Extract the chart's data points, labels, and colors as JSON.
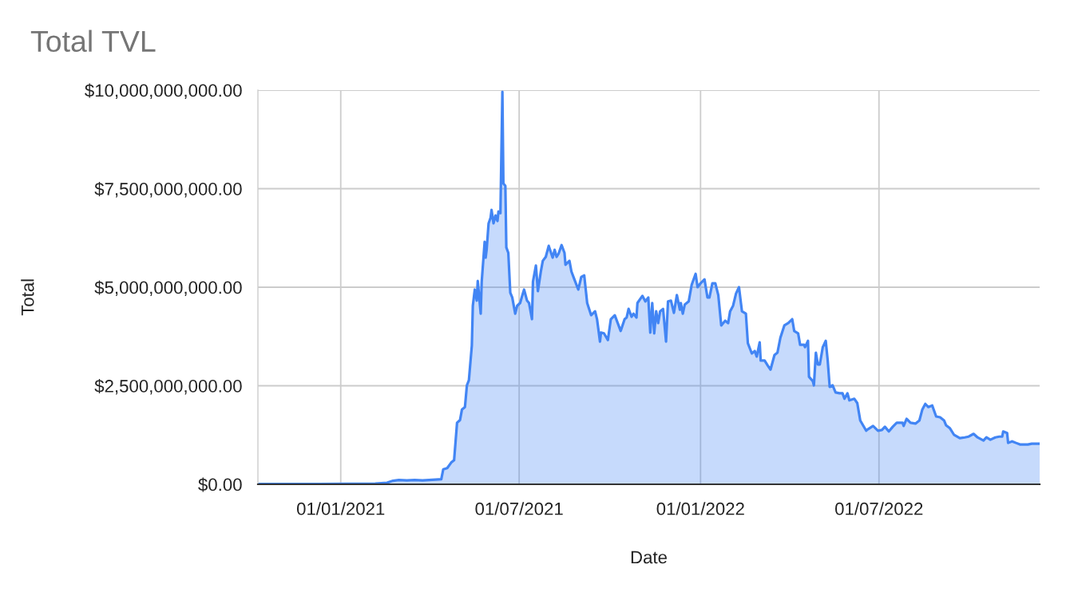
{
  "chart_data": {
    "type": "area",
    "title": "Total TVL",
    "xlabel": "Date",
    "ylabel": "Total",
    "x": [
      "2020-10-09",
      "2020-12-10",
      "2021-02-05",
      "2021-02-17",
      "2021-02-23",
      "2021-03-01",
      "2021-03-09",
      "2021-03-17",
      "2021-03-25",
      "2021-04-07",
      "2021-04-13",
      "2021-04-15",
      "2021-04-19",
      "2021-04-23",
      "2021-04-26",
      "2021-04-29",
      "2021-05-02",
      "2021-05-04",
      "2021-05-07",
      "2021-05-09",
      "2021-05-11",
      "2021-05-14",
      "2021-05-15",
      "2021-05-17",
      "2021-05-19",
      "2021-05-20",
      "2021-05-23",
      "2021-05-24",
      "2021-05-27",
      "2021-05-28",
      "2021-05-29",
      "2021-05-31",
      "2021-06-02",
      "2021-06-03",
      "2021-06-05",
      "2021-06-07",
      "2021-06-09",
      "2021-06-10",
      "2021-06-12",
      "2021-06-14",
      "2021-06-15",
      "2021-06-17",
      "2021-06-18",
      "2021-06-20",
      "2021-06-22",
      "2021-06-24",
      "2021-06-27",
      "2021-06-29",
      "2021-07-02",
      "2021-07-05",
      "2021-07-06",
      "2021-07-09",
      "2021-07-11",
      "2021-07-14",
      "2021-07-15",
      "2021-07-18",
      "2021-07-20",
      "2021-07-23",
      "2021-07-25",
      "2021-07-28",
      "2021-07-31",
      "2021-08-04",
      "2021-08-06",
      "2021-08-08",
      "2021-08-10",
      "2021-08-13",
      "2021-08-16",
      "2021-08-17",
      "2021-08-21",
      "2021-08-23",
      "2021-08-26",
      "2021-08-30",
      "2021-09-02",
      "2021-09-05",
      "2021-09-08",
      "2021-09-12",
      "2021-09-16",
      "2021-09-18",
      "2021-09-21",
      "2021-09-22",
      "2021-09-25",
      "2021-09-29",
      "2021-10-02",
      "2021-10-06",
      "2021-10-12",
      "2021-10-16",
      "2021-10-18",
      "2021-10-20",
      "2021-10-23",
      "2021-10-25",
      "2021-10-28",
      "2021-10-29",
      "2021-11-03",
      "2021-11-06",
      "2021-11-09",
      "2021-11-11",
      "2021-11-13",
      "2021-11-15",
      "2021-11-17",
      "2021-11-19",
      "2021-11-21",
      "2021-11-24",
      "2021-11-27",
      "2021-11-29",
      "2021-12-02",
      "2021-12-05",
      "2021-12-08",
      "2021-12-11",
      "2021-12-12",
      "2021-12-14",
      "2021-12-16",
      "2021-12-20",
      "2021-12-23",
      "2021-12-27",
      "2021-12-29",
      "2022-01-01",
      "2022-01-05",
      "2022-01-08",
      "2022-01-10",
      "2022-01-13",
      "2022-01-16",
      "2022-01-19",
      "2022-01-22",
      "2022-01-26",
      "2022-01-29",
      "2022-01-31",
      "2022-02-03",
      "2022-02-06",
      "2022-02-09",
      "2022-02-12",
      "2022-02-16",
      "2022-02-18",
      "2022-02-22",
      "2022-02-25",
      "2022-02-27",
      "2022-03-02",
      "2022-03-03",
      "2022-03-07",
      "2022-03-10",
      "2022-03-13",
      "2022-03-17",
      "2022-03-20",
      "2022-03-23",
      "2022-03-27",
      "2022-03-31",
      "2022-04-04",
      "2022-04-06",
      "2022-04-10",
      "2022-04-12",
      "2022-04-16",
      "2022-04-17",
      "2022-04-20",
      "2022-04-21",
      "2022-04-25",
      "2022-04-26",
      "2022-04-28",
      "2022-04-30",
      "2022-05-02",
      "2022-05-05",
      "2022-05-08",
      "2022-05-10",
      "2022-05-12",
      "2022-05-15",
      "2022-05-18",
      "2022-05-22",
      "2022-05-25",
      "2022-05-27",
      "2022-05-30",
      "2022-06-01",
      "2022-06-06",
      "2022-06-09",
      "2022-06-12",
      "2022-06-18",
      "2022-06-20",
      "2022-06-25",
      "2022-06-30",
      "2022-07-04",
      "2022-07-07",
      "2022-07-11",
      "2022-07-15",
      "2022-07-19",
      "2022-07-25",
      "2022-07-26",
      "2022-07-29",
      "2022-08-02",
      "2022-08-07",
      "2022-08-11",
      "2022-08-14",
      "2022-08-17",
      "2022-08-20",
      "2022-08-24",
      "2022-08-28",
      "2022-09-01",
      "2022-09-05",
      "2022-09-07",
      "2022-09-11",
      "2022-09-15",
      "2022-09-21",
      "2022-09-26",
      "2022-09-30",
      "2022-10-05",
      "2022-10-09",
      "2022-10-15",
      "2022-10-18",
      "2022-10-22",
      "2022-10-27",
      "2022-10-31",
      "2022-11-03",
      "2022-11-04",
      "2022-11-08",
      "2022-11-09",
      "2022-11-13",
      "2022-11-17",
      "2022-11-21",
      "2022-11-29",
      "2022-12-03",
      "2022-12-11"
    ],
    "series": [
      {
        "color": "#4285f4",
        "values": [
          10000000.0,
          10000000.0,
          20000000.0,
          40000000.0,
          90000000.0,
          110000000.0,
          100000000.0,
          110000000.0,
          100000000.0,
          120000000.0,
          130000000.0,
          380000000.0,
          410000000.0,
          550000000.0,
          610000000.0,
          1560000000.0,
          1630000000.0,
          1900000000.0,
          1960000000.0,
          2510000000.0,
          2640000000.0,
          3520000000.0,
          4530000000.0,
          4940000000.0,
          4660000000.0,
          5160000000.0,
          4330000000.0,
          5140000000.0,
          6150000000.0,
          5750000000.0,
          5950000000.0,
          6620000000.0,
          6760000000.0,
          6960000000.0,
          6620000000.0,
          6820000000.0,
          6680000000.0,
          6920000000.0,
          6880000000.0,
          9960000000.0,
          7630000000.0,
          7570000000.0,
          6010000000.0,
          5870000000.0,
          4860000000.0,
          4740000000.0,
          4330000000.0,
          4530000000.0,
          4600000000.0,
          4860000000.0,
          4940000000.0,
          4660000000.0,
          4600000000.0,
          4190000000.0,
          5140000000.0,
          5550000000.0,
          4900000000.0,
          5400000000.0,
          5670000000.0,
          5770000000.0,
          6050000000.0,
          5750000000.0,
          5950000000.0,
          5770000000.0,
          5850000000.0,
          6070000000.0,
          5870000000.0,
          5570000000.0,
          5670000000.0,
          5400000000.0,
          5200000000.0,
          4940000000.0,
          5260000000.0,
          5300000000.0,
          4600000000.0,
          4290000000.0,
          4390000000.0,
          4190000000.0,
          3620000000.0,
          3850000000.0,
          3830000000.0,
          3660000000.0,
          4190000000.0,
          4290000000.0,
          3890000000.0,
          4190000000.0,
          4230000000.0,
          4450000000.0,
          4250000000.0,
          4330000000.0,
          4230000000.0,
          4600000000.0,
          4780000000.0,
          4640000000.0,
          4740000000.0,
          3850000000.0,
          4600000000.0,
          3830000000.0,
          4390000000.0,
          4090000000.0,
          4390000000.0,
          4450000000.0,
          3620000000.0,
          4640000000.0,
          4660000000.0,
          4350000000.0,
          4800000000.0,
          4430000000.0,
          4600000000.0,
          4330000000.0,
          4560000000.0,
          4640000000.0,
          5060000000.0,
          5340000000.0,
          5000000000.0,
          5100000000.0,
          5200000000.0,
          4740000000.0,
          4740000000.0,
          5100000000.0,
          5100000000.0,
          4800000000.0,
          4030000000.0,
          4150000000.0,
          4090000000.0,
          4390000000.0,
          4530000000.0,
          4840000000.0,
          5000000000.0,
          4390000000.0,
          4330000000.0,
          3580000000.0,
          3320000000.0,
          3380000000.0,
          3240000000.0,
          3600000000.0,
          3140000000.0,
          3140000000.0,
          3020000000.0,
          2910000000.0,
          3280000000.0,
          3340000000.0,
          3720000000.0,
          4030000000.0,
          4090000000.0,
          4190000000.0,
          3890000000.0,
          3830000000.0,
          3540000000.0,
          3540000000.0,
          3480000000.0,
          3640000000.0,
          2730000000.0,
          2610000000.0,
          2510000000.0,
          3340000000.0,
          3040000000.0,
          3040000000.0,
          3480000000.0,
          3640000000.0,
          3140000000.0,
          2470000000.0,
          2510000000.0,
          2330000000.0,
          2310000000.0,
          2310000000.0,
          2170000000.0,
          2310000000.0,
          2130000000.0,
          2170000000.0,
          2060000000.0,
          1620000000.0,
          1360000000.0,
          1400000000.0,
          1480000000.0,
          1360000000.0,
          1380000000.0,
          1460000000.0,
          1340000000.0,
          1460000000.0,
          1560000000.0,
          1560000000.0,
          1480000000.0,
          1660000000.0,
          1560000000.0,
          1540000000.0,
          1620000000.0,
          1900000000.0,
          2040000000.0,
          1960000000.0,
          2000000000.0,
          1720000000.0,
          1700000000.0,
          1620000000.0,
          1500000000.0,
          1420000000.0,
          1260000000.0,
          1170000000.0,
          1190000000.0,
          1210000000.0,
          1280000000.0,
          1190000000.0,
          1110000000.0,
          1190000000.0,
          1130000000.0,
          1190000000.0,
          1210000000.0,
          1210000000.0,
          1340000000.0,
          1300000000.0,
          1050000000.0,
          1090000000.0,
          1050000000.0,
          1010000000.0,
          1010000000.0,
          1030000000.0,
          1030000000.0
        ]
      }
    ],
    "xlim": [
      "2020-10-09",
      "2022-12-11"
    ],
    "xticks": [
      {
        "value": "2021-01-01",
        "label": "01/01/2021"
      },
      {
        "value": "2021-07-01",
        "label": "01/07/2021"
      },
      {
        "value": "2022-01-01",
        "label": "01/01/2022"
      },
      {
        "value": "2022-07-01",
        "label": "01/07/2022"
      }
    ],
    "ylim": [
      0,
      10000000000
    ],
    "yticks": [
      {
        "value": 0,
        "label": "$0.00"
      },
      {
        "value": 2500000000,
        "label": "$2,500,000,000.00"
      },
      {
        "value": 5000000000,
        "label": "$5,000,000,000.00"
      },
      {
        "value": 7500000000,
        "label": "$7,500,000,000.00"
      },
      {
        "value": 10000000000,
        "label": "$10,000,000,000.00"
      }
    ],
    "grid": true
  }
}
